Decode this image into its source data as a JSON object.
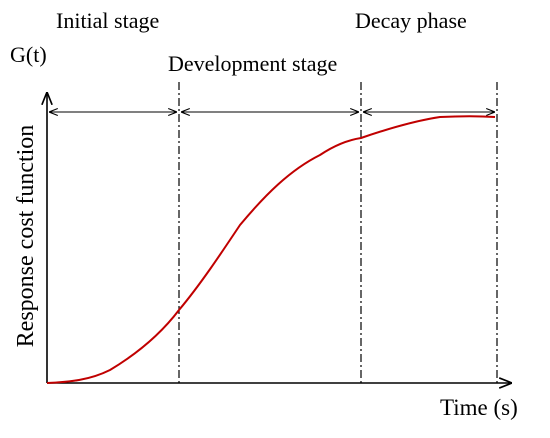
{
  "labels": {
    "stage_initial": "Initial stage",
    "stage_development": "Development stage",
    "stage_decay": "Decay phase",
    "y_axis_top": "G(t)",
    "y_axis_label": "Response cost function",
    "x_axis_label": "Time (s)"
  },
  "colors": {
    "curve": "#c00000",
    "lines": "#000000"
  }
}
